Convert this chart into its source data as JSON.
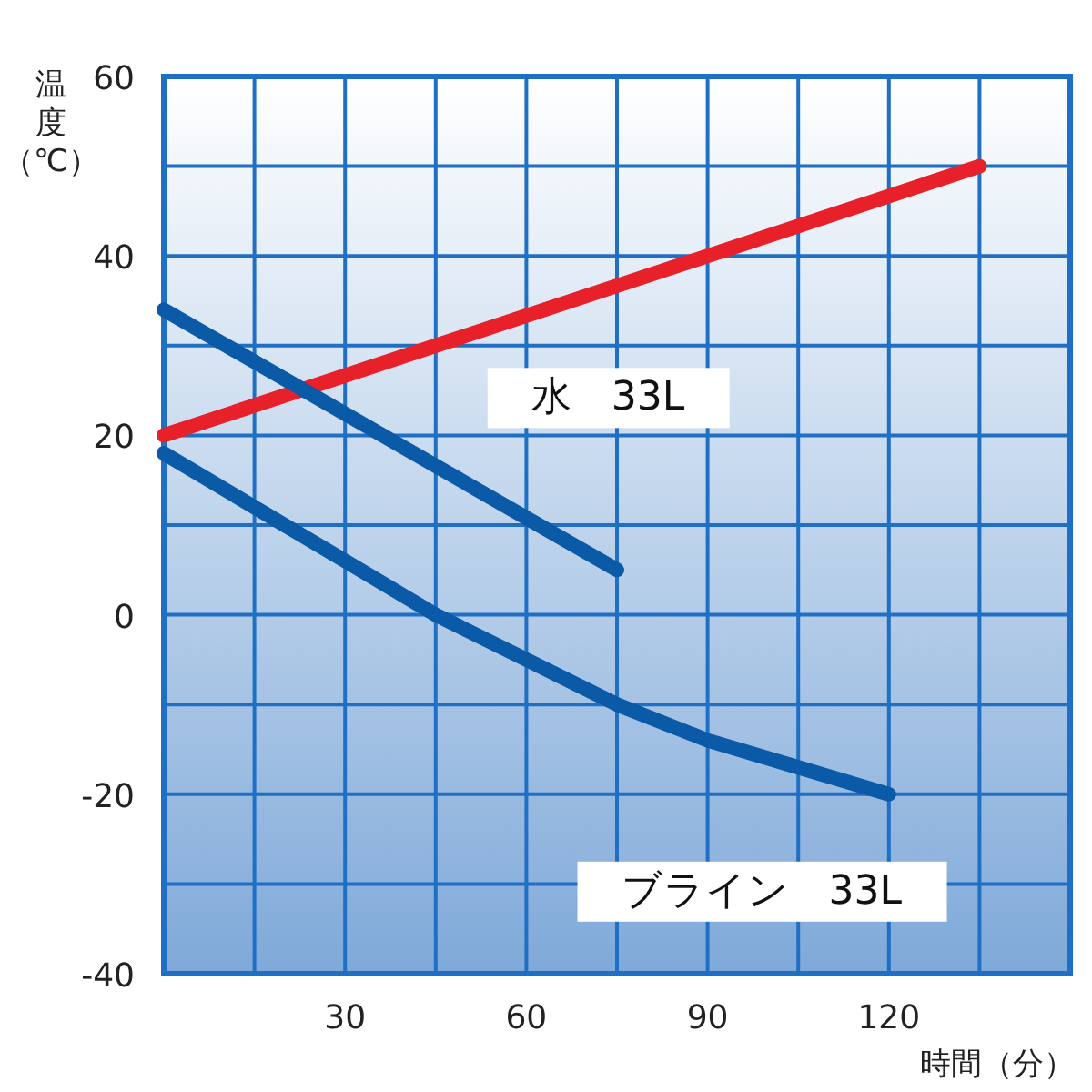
{
  "chart_data": {
    "type": "line",
    "xlabel": "時間（分）",
    "ylabel": "温度（℃）",
    "xlim": [
      0,
      150
    ],
    "ylim": [
      -40,
      60
    ],
    "xticks": [
      {
        "value": 0,
        "label": null
      },
      {
        "value": 15,
        "label": null
      },
      30,
      {
        "value": 45,
        "label": null
      },
      60,
      {
        "value": 75,
        "label": null
      },
      90,
      {
        "value": 105,
        "label": null
      },
      120,
      {
        "value": 135,
        "label": null
      },
      {
        "value": 150,
        "label": null
      }
    ],
    "yticks": [
      -40,
      {
        "value": -30,
        "label": null
      },
      -20,
      {
        "value": -10,
        "label": null
      },
      0,
      {
        "value": 10,
        "label": null
      },
      20,
      {
        "value": 30,
        "label": null
      },
      40,
      {
        "value": 50,
        "label": null
      },
      60
    ],
    "grid": true,
    "marker": "none",
    "line_style": "solid",
    "series": [
      {
        "color": "#e8202a",
        "x": [
          0,
          135
        ],
        "values": [
          20,
          50
        ]
      },
      {
        "name": "水　33L",
        "color": "#0b5aa8",
        "x": [
          0,
          75
        ],
        "values": [
          34,
          5
        ]
      },
      {
        "name": "ブライン　33L",
        "color": "#0b5aa8",
        "x": [
          0,
          15,
          30,
          45,
          60,
          75,
          90,
          105,
          120
        ],
        "values": [
          18,
          12,
          6,
          0,
          -5,
          -10,
          -14,
          -17,
          -20
        ]
      }
    ]
  }
}
